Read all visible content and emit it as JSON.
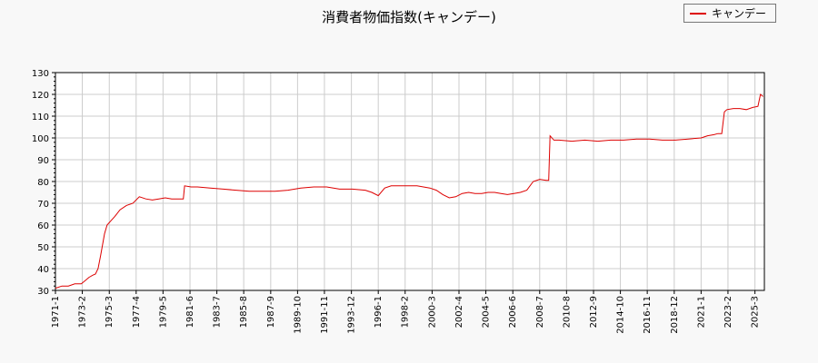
{
  "chart_data": {
    "type": "line",
    "title": "消費者物価指数(キャンデー)",
    "xlabel": "",
    "ylabel": "",
    "ylim": [
      30,
      130
    ],
    "yticks": [
      30,
      40,
      50,
      60,
      70,
      80,
      90,
      100,
      110,
      120,
      130
    ],
    "xlim": [
      1971.0,
      2025.9
    ],
    "xtick_labels": [
      "1971-1",
      "1973-2",
      "1975-3",
      "1977-4",
      "1979-5",
      "1981-6",
      "1983-7",
      "1985-8",
      "1987-9",
      "1989-10",
      "1991-11",
      "1993-12",
      "1996-1",
      "1998-2",
      "2000-3",
      "2002-4",
      "2004-5",
      "2006-6",
      "2008-7",
      "2010-8",
      "2012-9",
      "2014-10",
      "2016-11",
      "2018-12",
      "2021-1",
      "2023-2",
      "2025-3"
    ],
    "xtick_positions": [
      1971.0,
      1973.08,
      1975.17,
      1977.25,
      1979.33,
      1981.42,
      1983.5,
      1985.58,
      1987.67,
      1989.75,
      1991.83,
      1993.92,
      1996.0,
      1998.08,
      2000.17,
      2002.25,
      2004.33,
      2006.42,
      2008.5,
      2010.58,
      2012.67,
      2014.75,
      2016.83,
      2018.92,
      2021.0,
      2023.08,
      2025.17
    ],
    "grid": true,
    "legend_position": "top-right",
    "series": [
      {
        "name": "キャンデー",
        "color": "#dd0000",
        "x": [
          1971.0,
          1971.5,
          1972.0,
          1972.5,
          1973.0,
          1973.3,
          1973.6,
          1973.9,
          1974.1,
          1974.3,
          1974.5,
          1974.8,
          1975.0,
          1975.3,
          1975.6,
          1976.0,
          1976.5,
          1977.0,
          1977.5,
          1978.0,
          1978.5,
          1979.0,
          1979.5,
          1980.0,
          1980.6,
          1980.9,
          1981.0,
          1981.5,
          1982.0,
          1983.0,
          1984.0,
          1985.0,
          1986.0,
          1987.0,
          1988.0,
          1989.0,
          1990.0,
          1991.0,
          1992.0,
          1993.0,
          1994.0,
          1995.0,
          1995.5,
          1996.0,
          1996.5,
          1997.0,
          1998.0,
          1999.0,
          2000.0,
          2000.5,
          2001.0,
          2001.5,
          2002.0,
          2002.5,
          2003.0,
          2003.5,
          2004.0,
          2004.5,
          2005.0,
          2005.5,
          2006.0,
          2006.5,
          2007.0,
          2007.5,
          2008.0,
          2008.5,
          2009.0,
          2009.2,
          2009.3,
          2009.6,
          2010.0,
          2011.0,
          2012.0,
          2013.0,
          2014.0,
          2015.0,
          2016.0,
          2017.0,
          2018.0,
          2019.0,
          2020.0,
          2021.0,
          2021.5,
          2022.0,
          2022.3,
          2022.6,
          2022.8,
          2023.0,
          2023.5,
          2024.0,
          2024.5,
          2025.0,
          2025.4,
          2025.6,
          2025.8
        ],
        "values": [
          31,
          32,
          32,
          33,
          33,
          34.5,
          36,
          37,
          37.5,
          40,
          46,
          56,
          60,
          62,
          64,
          67,
          69,
          70,
          73,
          72,
          71.5,
          72,
          72.5,
          72,
          72,
          72,
          78,
          77.5,
          77.5,
          77,
          76.5,
          76,
          75.5,
          75.5,
          75.5,
          76,
          77,
          77.5,
          77.5,
          76.5,
          76.5,
          76,
          75,
          73.5,
          77,
          78,
          78,
          78,
          77,
          76,
          74,
          72.5,
          73,
          74.5,
          75,
          74.5,
          74.5,
          75,
          75,
          74.5,
          74,
          74.5,
          75,
          76,
          80,
          81,
          80.5,
          80.5,
          101,
          99,
          99,
          98.5,
          99,
          98.5,
          99,
          99,
          99.5,
          99.5,
          99,
          99,
          99.5,
          100,
          101,
          101.5,
          102,
          102,
          112,
          113,
          113.5,
          113.5,
          113,
          114,
          114.5,
          120,
          119
        ]
      }
    ]
  }
}
